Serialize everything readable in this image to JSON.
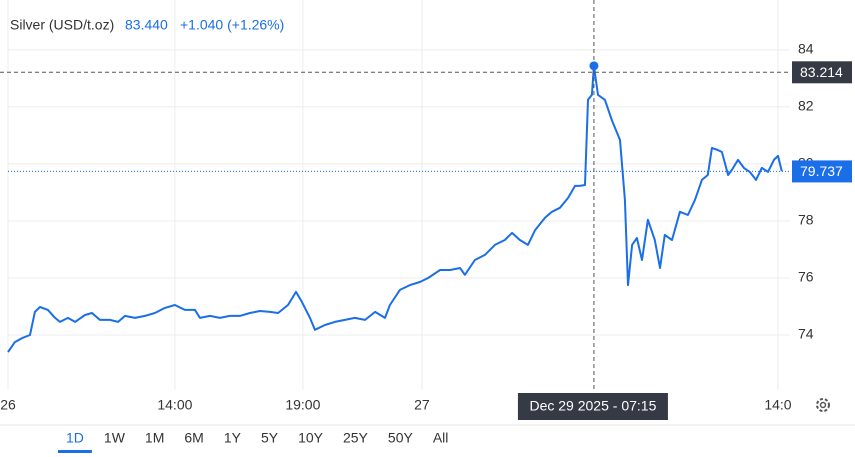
{
  "header": {
    "title": "Silver (USD/t.oz)",
    "price": "83.440",
    "change": "+1.040 (+1.26%)"
  },
  "chart_data": {
    "type": "line",
    "color": "#1a6fe8",
    "x": [
      0,
      0.27,
      0.55,
      0.86,
      1.05,
      1.25,
      1.56,
      1.84,
      2.03,
      2.34,
      2.62,
      3.01,
      3.28,
      3.59,
      3.98,
      4.3,
      4.57,
      4.96,
      5.35,
      5.74,
      6.13,
      6.52,
      6.91,
      7.3,
      7.5,
      7.89,
      8.28,
      8.67,
      9.06,
      9.45,
      9.84,
      10.23,
      10.55,
      10.94,
      11.25,
      11.48,
      11.8,
      11.99,
      12.38,
      12.77,
      13.16,
      13.55,
      13.95,
      14.34,
      14.73,
      14.92,
      15.31,
      15.7,
      16.09,
      16.41,
      16.88,
      17.27,
      17.66,
      17.85,
      18.24,
      18.63,
      19.02,
      19.41,
      19.69,
      20.0,
      20.31,
      20.59,
      20.98,
      21.25,
      21.56,
      21.88,
      22.15,
      22.34,
      22.54,
      22.66,
      22.81,
      22.89,
      23.05,
      23.32,
      23.59,
      23.91,
      24.1,
      24.22,
      24.38,
      24.57,
      24.77,
      25.0,
      25.27,
      25.47,
      25.66,
      25.94,
      26.25,
      26.56,
      26.84,
      27.11,
      27.34,
      27.5,
      27.73,
      27.89,
      28.13,
      28.28,
      28.52,
      28.75,
      28.98,
      29.22,
      29.45,
      29.69,
      29.92,
      30.08,
      30.23
    ],
    "values": [
      73.4,
      73.75,
      73.89,
      74.0,
      74.81,
      74.98,
      74.88,
      74.6,
      74.46,
      74.6,
      74.46,
      74.7,
      74.77,
      74.53,
      74.53,
      74.46,
      74.67,
      74.6,
      74.67,
      74.77,
      74.95,
      75.05,
      74.88,
      74.88,
      74.6,
      74.67,
      74.6,
      74.67,
      74.67,
      74.77,
      74.84,
      74.81,
      74.77,
      75.05,
      75.51,
      75.16,
      74.6,
      74.18,
      74.35,
      74.46,
      74.53,
      74.6,
      74.53,
      74.81,
      74.6,
      75.05,
      75.58,
      75.75,
      75.86,
      76.0,
      76.28,
      76.28,
      76.35,
      76.11,
      76.63,
      76.81,
      77.16,
      77.33,
      77.58,
      77.33,
      77.16,
      77.68,
      78.11,
      78.32,
      78.46,
      78.81,
      79.23,
      79.23,
      79.26,
      82.25,
      82.42,
      83.44,
      82.42,
      82.25,
      81.54,
      80.84,
      78.74,
      75.75,
      77.16,
      77.4,
      76.63,
      78.04,
      77.33,
      76.35,
      77.51,
      77.33,
      78.32,
      78.21,
      78.74,
      79.44,
      79.61,
      80.56,
      80.49,
      80.42,
      79.61,
      79.79,
      80.14,
      79.86,
      79.72,
      79.44,
      79.86,
      79.72,
      80.14,
      80.28,
      79.74
    ],
    "xlim": [
      0,
      30.55
    ],
    "xticks": [
      {
        "value": 0,
        "label": "26"
      },
      {
        "value": 6.52,
        "label": "14:00"
      },
      {
        "value": 11.52,
        "label": "19:00"
      },
      {
        "value": 16.17,
        "label": "27"
      },
      {
        "value": 30.08,
        "label": "14:0"
      }
    ],
    "ylim": [
      72.07,
      85.75
    ],
    "yticks": [
      74,
      76,
      78,
      80,
      82,
      84
    ],
    "grid": true,
    "last_price": 79.737,
    "crosshair": {
      "x": 22.89,
      "x_label": "Dec 29 2025 - 07:15",
      "y": 83.214
    }
  },
  "range_buttons": [
    "1D",
    "1W",
    "1M",
    "6M",
    "1Y",
    "5Y",
    "10Y",
    "25Y",
    "50Y",
    "All"
  ],
  "selected_range": "1D"
}
